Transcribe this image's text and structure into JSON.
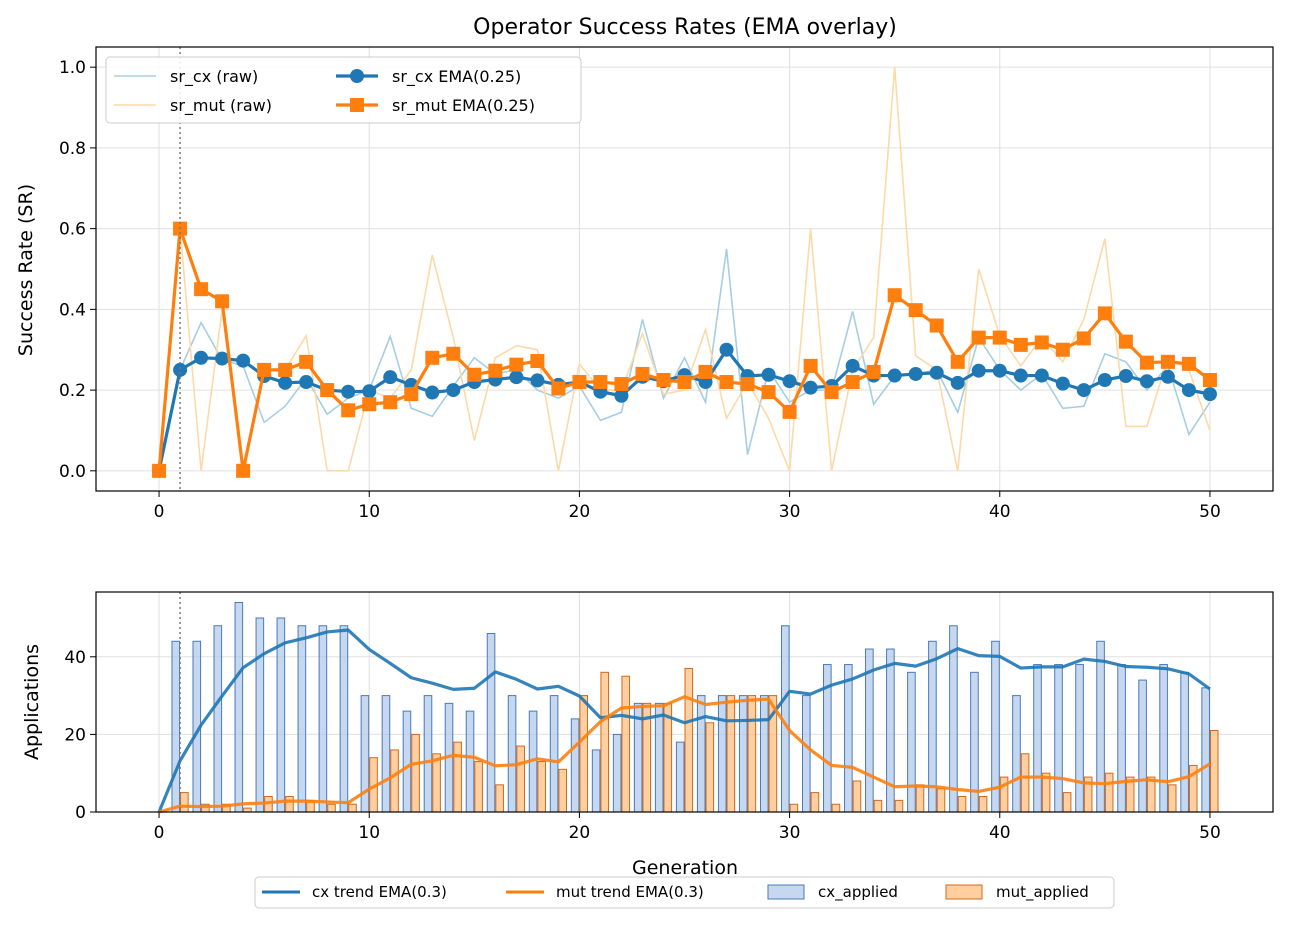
{
  "chart_data": [
    {
      "type": "line",
      "title": "Operator Success Rates (EMA overlay)",
      "xlabel": "",
      "ylabel": "Success Rate (SR)",
      "xlim": [
        -3,
        53
      ],
      "ylim": [
        -0.05,
        1.05
      ],
      "xticks": [
        0,
        10,
        20,
        30,
        40,
        50
      ],
      "yticks": [
        0.0,
        0.2,
        0.4,
        0.6,
        0.8,
        1.0
      ],
      "ytick_labels": [
        "0.0",
        "0.2",
        "0.4",
        "0.6",
        "0.8",
        "1.0"
      ],
      "grid": true,
      "legend": "upper-left, 2 columns",
      "vline_x": 1,
      "x": [
        0,
        1,
        2,
        3,
        4,
        5,
        6,
        7,
        8,
        9,
        10,
        11,
        12,
        13,
        14,
        15,
        16,
        17,
        18,
        19,
        20,
        21,
        22,
        23,
        24,
        25,
        26,
        27,
        28,
        29,
        30,
        31,
        32,
        33,
        34,
        35,
        36,
        37,
        38,
        39,
        40,
        41,
        42,
        43,
        44,
        45,
        46,
        47,
        48,
        49,
        50
      ],
      "series": [
        {
          "name": "sr_cx (raw)",
          "color": "#a6cee3",
          "style": "raw",
          "values": [
            0,
            0.25,
            0.367,
            0.275,
            0.26,
            0.12,
            0.16,
            0.23,
            0.14,
            0.18,
            0.2,
            0.333,
            0.155,
            0.135,
            0.21,
            0.28,
            0.24,
            0.25,
            0.2,
            0.18,
            0.21,
            0.125,
            0.145,
            0.375,
            0.18,
            0.28,
            0.17,
            0.55,
            0.04,
            0.25,
            0.17,
            0.2,
            0.2,
            0.395,
            0.165,
            0.235,
            0.24,
            0.25,
            0.145,
            0.33,
            0.25,
            0.2,
            0.24,
            0.155,
            0.16,
            0.29,
            0.27,
            0.2,
            0.26,
            0.09,
            0.17
          ]
        },
        {
          "name": "sr_mut (raw)",
          "color": "#fdd9a8",
          "style": "raw",
          "values": [
            0,
            0.6,
            0,
            0.4,
            0,
            0.25,
            0.25,
            0.335,
            0,
            0,
            0.2,
            0.18,
            0.25,
            0.535,
            0.33,
            0.075,
            0.28,
            0.31,
            0.3,
            0,
            0.265,
            0.2,
            0.2,
            0.34,
            0.19,
            0.2,
            0.35,
            0.13,
            0.22,
            0.13,
            0,
            0.6,
            0,
            0.25,
            0.33,
            1.0,
            0.285,
            0.25,
            0,
            0.5,
            0.335,
            0.26,
            0.33,
            0.27,
            0.375,
            0.575,
            0.11,
            0.11,
            0.28,
            0.25,
            0.1
          ]
        },
        {
          "name": "sr_cx EMA(0.25)",
          "color": "#1f77b4",
          "style": "ema",
          "marker": "circle",
          "values": [
            0,
            0.25,
            0.28,
            0.278,
            0.273,
            0.235,
            0.218,
            0.22,
            0.2,
            0.196,
            0.197,
            0.232,
            0.213,
            0.194,
            0.2,
            0.22,
            0.226,
            0.232,
            0.224,
            0.213,
            0.22,
            0.196,
            0.186,
            0.233,
            0.222,
            0.237,
            0.22,
            0.3,
            0.235,
            0.238,
            0.222,
            0.206,
            0.21,
            0.26,
            0.236,
            0.236,
            0.24,
            0.243,
            0.218,
            0.248,
            0.248,
            0.236,
            0.236,
            0.216,
            0.2,
            0.225,
            0.235,
            0.222,
            0.233,
            0.2,
            0.19
          ]
        },
        {
          "name": "sr_mut EMA(0.25)",
          "color": "#ff7f0e",
          "style": "ema",
          "marker": "square",
          "values": [
            0,
            0.6,
            0.45,
            0.42,
            0,
            0.25,
            0.25,
            0.27,
            0.2,
            0.15,
            0.165,
            0.17,
            0.19,
            0.28,
            0.29,
            0.238,
            0.248,
            0.263,
            0.272,
            0.204,
            0.22,
            0.22,
            0.215,
            0.24,
            0.225,
            0.22,
            0.245,
            0.22,
            0.215,
            0.195,
            0.146,
            0.26,
            0.195,
            0.22,
            0.245,
            0.435,
            0.398,
            0.36,
            0.27,
            0.33,
            0.33,
            0.312,
            0.318,
            0.3,
            0.328,
            0.39,
            0.32,
            0.268,
            0.27,
            0.265,
            0.225
          ]
        }
      ]
    },
    {
      "type": "bar",
      "title": "",
      "xlabel": "Generation",
      "ylabel": "Applications",
      "xlim": [
        -3,
        53
      ],
      "ylim": [
        0,
        56.7
      ],
      "xticks": [
        0,
        10,
        20,
        30,
        40,
        50
      ],
      "yticks": [
        0,
        20,
        40
      ],
      "grid": true,
      "legend": "below plot, 4 columns",
      "vline_x": 1,
      "x": [
        0,
        1,
        2,
        3,
        4,
        5,
        6,
        7,
        8,
        9,
        10,
        11,
        12,
        13,
        14,
        15,
        16,
        17,
        18,
        19,
        20,
        21,
        22,
        23,
        24,
        25,
        26,
        27,
        28,
        29,
        30,
        31,
        32,
        33,
        34,
        35,
        36,
        37,
        38,
        39,
        40,
        41,
        42,
        43,
        44,
        45,
        46,
        47,
        48,
        49,
        50
      ],
      "series": [
        {
          "name": "cx_applied",
          "kind": "bar",
          "fill": "#aec7e8",
          "stroke": "#4a7ab8",
          "values": [
            0,
            44,
            44,
            48,
            54,
            50,
            50,
            48,
            48,
            48,
            30,
            30,
            26,
            30,
            28,
            26,
            46,
            30,
            26,
            30,
            24,
            16,
            20,
            28,
            28,
            18,
            30,
            30,
            30,
            30,
            48,
            30,
            38,
            38,
            42,
            42,
            36,
            44,
            48,
            36,
            44,
            30,
            38,
            38,
            38,
            44,
            38,
            34,
            38,
            36,
            32
          ]
        },
        {
          "name": "mut_applied",
          "kind": "bar",
          "fill": "#ffbb78",
          "stroke": "#d2691e",
          "values": [
            0,
            5,
            2,
            2,
            1,
            4,
            4,
            3,
            2,
            2,
            14,
            16,
            20,
            15,
            18,
            13,
            7,
            17,
            13,
            11,
            30,
            36,
            35,
            28,
            28,
            37,
            23,
            30,
            30,
            30,
            2,
            5,
            2,
            8,
            3,
            3,
            7,
            6,
            4,
            4,
            9,
            15,
            10,
            5,
            9,
            10,
            9,
            9,
            7,
            12,
            21
          ]
        },
        {
          "name": "cx trend EMA(0.3)",
          "kind": "line",
          "color": "#1f77b4",
          "values": [
            0,
            13.2,
            22.4,
            29.9,
            37.2,
            40.8,
            43.6,
            44.9,
            46.4,
            46.9,
            41.9,
            38.3,
            34.6,
            33.2,
            31.6,
            31.9,
            36.1,
            34.2,
            31.7,
            32.4,
            29.9,
            24.3,
            24.9,
            24,
            25,
            23,
            24.6,
            23.5,
            23.6,
            23.8,
            31.1,
            30.4,
            32.7,
            34.3,
            36.6,
            38.3,
            37.6,
            39.5,
            42.1,
            40.3,
            40.1,
            37.1,
            37.4,
            37.4,
            39.4,
            38.8,
            37.5,
            37.3,
            36.9,
            35.6,
            31.7
          ]
        },
        {
          "name": "mut trend EMA(0.3)",
          "kind": "line",
          "color": "#ff7f0e",
          "values": [
            0,
            1.5,
            1.4,
            1.5,
            2.1,
            2.3,
            2.8,
            2.8,
            2.6,
            2.4,
            5.9,
            8.8,
            12.3,
            13.2,
            14.6,
            14.1,
            11.9,
            12.2,
            13.7,
            12.9,
            18,
            23.3,
            26.8,
            27.2,
            27.4,
            29.7,
            27.7,
            28.3,
            28.8,
            29.1,
            21,
            16,
            12,
            11.5,
            9,
            6.5,
            6.7,
            6.5,
            5.8,
            5.3,
            6.4,
            9,
            9,
            8.6,
            7.5,
            7.3,
            7.9,
            8.3,
            7.8,
            9.1,
            12.4
          ]
        }
      ]
    }
  ],
  "legend_labels": {
    "top": [
      "sr_cx (raw)",
      "sr_mut (raw)",
      "sr_cx EMA(0.25)",
      "sr_mut EMA(0.25)"
    ],
    "bottom": [
      "cx trend EMA(0.3)",
      "mut trend EMA(0.3)",
      "cx_applied",
      "mut_applied"
    ]
  }
}
